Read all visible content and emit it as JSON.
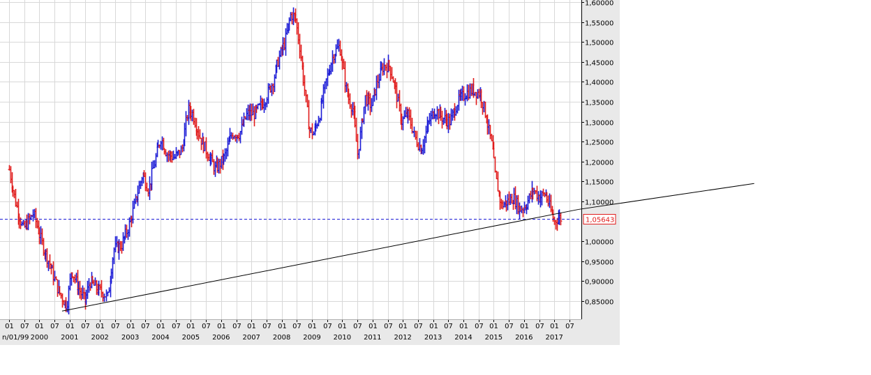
{
  "chart_data": {
    "type": "ohlc",
    "colors": {
      "up": "#1b1bd6",
      "down": "#e01b1b",
      "grid": "#d8d8d8",
      "trendline": "#000000",
      "current_line": "#1b1bd6",
      "current_label": "#e01b1b",
      "panel": "#e9e9e9"
    },
    "ylim": [
      0.82,
      1.6
    ],
    "y_ticks": [
      "1,60000",
      "1,55000",
      "1,50000",
      "1,45000",
      "1,40000",
      "1,35000",
      "1,30000",
      "1,25000",
      "1,20000",
      "1,15000",
      "1,10000",
      "1,00000",
      "0,95000",
      "0,90000",
      "0,85000"
    ],
    "y_tick_values": [
      1.6,
      1.55,
      1.5,
      1.45,
      1.4,
      1.35,
      1.3,
      1.25,
      1.2,
      1.15,
      1.1,
      1.0,
      0.95,
      0.9,
      0.85
    ],
    "current_value": 1.0564,
    "current_label": "1,05643",
    "x_start": 1999.0,
    "x_end": 2017.7,
    "x_month_ticks": [
      {
        "t": 1999.0,
        "label": "01"
      },
      {
        "t": 1999.5,
        "label": "07"
      },
      {
        "t": 2000.0,
        "label": "01"
      },
      {
        "t": 2000.5,
        "label": "07"
      },
      {
        "t": 2001.0,
        "label": "01"
      },
      {
        "t": 2001.5,
        "label": "07"
      },
      {
        "t": 2002.0,
        "label": "01"
      },
      {
        "t": 2002.5,
        "label": "07"
      },
      {
        "t": 2003.0,
        "label": "01"
      },
      {
        "t": 2003.5,
        "label": "07"
      },
      {
        "t": 2004.0,
        "label": "01"
      },
      {
        "t": 2004.5,
        "label": "07"
      },
      {
        "t": 2005.0,
        "label": "01"
      },
      {
        "t": 2005.5,
        "label": "07"
      },
      {
        "t": 2006.0,
        "label": "01"
      },
      {
        "t": 2006.5,
        "label": "07"
      },
      {
        "t": 2007.0,
        "label": "01"
      },
      {
        "t": 2007.5,
        "label": "07"
      },
      {
        "t": 2008.0,
        "label": "01"
      },
      {
        "t": 2008.5,
        "label": "07"
      },
      {
        "t": 2009.0,
        "label": "01"
      },
      {
        "t": 2009.5,
        "label": "07"
      },
      {
        "t": 2010.0,
        "label": "01"
      },
      {
        "t": 2010.5,
        "label": "07"
      },
      {
        "t": 2011.0,
        "label": "01"
      },
      {
        "t": 2011.5,
        "label": "07"
      },
      {
        "t": 2012.0,
        "label": "01"
      },
      {
        "t": 2012.5,
        "label": "07"
      },
      {
        "t": 2013.0,
        "label": "01"
      },
      {
        "t": 2013.5,
        "label": "07"
      },
      {
        "t": 2014.0,
        "label": "01"
      },
      {
        "t": 2014.5,
        "label": "07"
      },
      {
        "t": 2015.0,
        "label": "01"
      },
      {
        "t": 2015.5,
        "label": "07"
      },
      {
        "t": 2016.0,
        "label": "01"
      },
      {
        "t": 2016.5,
        "label": "07"
      },
      {
        "t": 2017.0,
        "label": "01"
      },
      {
        "t": 2017.5,
        "label": "07"
      }
    ],
    "x_year_labels": [
      {
        "t": 1999.0,
        "label": "n/01/99"
      },
      {
        "t": 2000.0,
        "label": "2000"
      },
      {
        "t": 2001.0,
        "label": "2001"
      },
      {
        "t": 2002.0,
        "label": "2002"
      },
      {
        "t": 2003.0,
        "label": "2003"
      },
      {
        "t": 2004.0,
        "label": "2004"
      },
      {
        "t": 2005.0,
        "label": "2005"
      },
      {
        "t": 2006.0,
        "label": "2006"
      },
      {
        "t": 2007.0,
        "label": "2007"
      },
      {
        "t": 2008.0,
        "label": "2008"
      },
      {
        "t": 2009.0,
        "label": "2009"
      },
      {
        "t": 2010.0,
        "label": "2010"
      },
      {
        "t": 2011.0,
        "label": "2011"
      },
      {
        "t": 2012.0,
        "label": "2012"
      },
      {
        "t": 2013.0,
        "label": "2013"
      },
      {
        "t": 2014.0,
        "label": "2014"
      },
      {
        "t": 2015.0,
        "label": "2015"
      },
      {
        "t": 2016.0,
        "label": "2016"
      },
      {
        "t": 2017.0,
        "label": "2017"
      }
    ],
    "trendline": {
      "x0": 2000.75,
      "y0": 0.825,
      "x1": 2017.8,
      "y1": 1.08
    },
    "trendline_extension": {
      "x0": 2017.8,
      "y0": 1.08,
      "x1": 2023.6,
      "y1": 1.145
    },
    "close_path": [
      [
        1999.0,
        1.18
      ],
      [
        1999.2,
        1.1
      ],
      [
        1999.45,
        1.03
      ],
      [
        1999.8,
        1.07
      ],
      [
        2000.1,
        0.99
      ],
      [
        2000.35,
        0.94
      ],
      [
        2000.6,
        0.88
      ],
      [
        2000.8,
        0.85
      ],
      [
        2000.9,
        0.84
      ],
      [
        2001.05,
        0.93
      ],
      [
        2001.3,
        0.88
      ],
      [
        2001.5,
        0.85
      ],
      [
        2001.65,
        0.9
      ],
      [
        2001.9,
        0.88
      ],
      [
        2002.1,
        0.87
      ],
      [
        2002.25,
        0.86
      ],
      [
        2002.45,
        0.98
      ],
      [
        2002.7,
        0.99
      ],
      [
        2002.95,
        1.04
      ],
      [
        2003.1,
        1.08
      ],
      [
        2003.4,
        1.17
      ],
      [
        2003.6,
        1.13
      ],
      [
        2003.8,
        1.2
      ],
      [
        2004.0,
        1.26
      ],
      [
        2004.2,
        1.22
      ],
      [
        2004.45,
        1.21
      ],
      [
        2004.7,
        1.23
      ],
      [
        2004.9,
        1.33
      ],
      [
        2005.05,
        1.32
      ],
      [
        2005.3,
        1.26
      ],
      [
        2005.55,
        1.22
      ],
      [
        2005.8,
        1.18
      ],
      [
        2006.1,
        1.21
      ],
      [
        2006.35,
        1.27
      ],
      [
        2006.6,
        1.27
      ],
      [
        2006.85,
        1.32
      ],
      [
        2007.1,
        1.32
      ],
      [
        2007.4,
        1.35
      ],
      [
        2007.7,
        1.4
      ],
      [
        2007.9,
        1.46
      ],
      [
        2008.1,
        1.5
      ],
      [
        2008.3,
        1.57
      ],
      [
        2008.45,
        1.56
      ],
      [
        2008.6,
        1.48
      ],
      [
        2008.75,
        1.38
      ],
      [
        2008.9,
        1.28
      ],
      [
        2009.05,
        1.27
      ],
      [
        2009.25,
        1.32
      ],
      [
        2009.45,
        1.4
      ],
      [
        2009.7,
        1.47
      ],
      [
        2009.9,
        1.49
      ],
      [
        2010.15,
        1.37
      ],
      [
        2010.35,
        1.33
      ],
      [
        2010.5,
        1.22
      ],
      [
        2010.75,
        1.36
      ],
      [
        2010.95,
        1.34
      ],
      [
        2011.15,
        1.4
      ],
      [
        2011.35,
        1.44
      ],
      [
        2011.55,
        1.44
      ],
      [
        2011.75,
        1.38
      ],
      [
        2011.95,
        1.3
      ],
      [
        2012.15,
        1.32
      ],
      [
        2012.4,
        1.26
      ],
      [
        2012.6,
        1.23
      ],
      [
        2012.85,
        1.3
      ],
      [
        2013.05,
        1.33
      ],
      [
        2013.3,
        1.31
      ],
      [
        2013.55,
        1.3
      ],
      [
        2013.8,
        1.35
      ],
      [
        2014.05,
        1.37
      ],
      [
        2014.3,
        1.38
      ],
      [
        2014.55,
        1.37
      ],
      [
        2014.75,
        1.31
      ],
      [
        2014.95,
        1.23
      ],
      [
        2015.05,
        1.16
      ],
      [
        2015.25,
        1.09
      ],
      [
        2015.45,
        1.1
      ],
      [
        2015.65,
        1.11
      ],
      [
        2015.85,
        1.08
      ],
      [
        2016.05,
        1.09
      ],
      [
        2016.3,
        1.13
      ],
      [
        2016.5,
        1.11
      ],
      [
        2016.7,
        1.12
      ],
      [
        2016.9,
        1.07
      ],
      [
        2017.0,
        1.05
      ],
      [
        2017.12,
        1.06
      ],
      [
        2017.25,
        1.0564
      ]
    ]
  }
}
